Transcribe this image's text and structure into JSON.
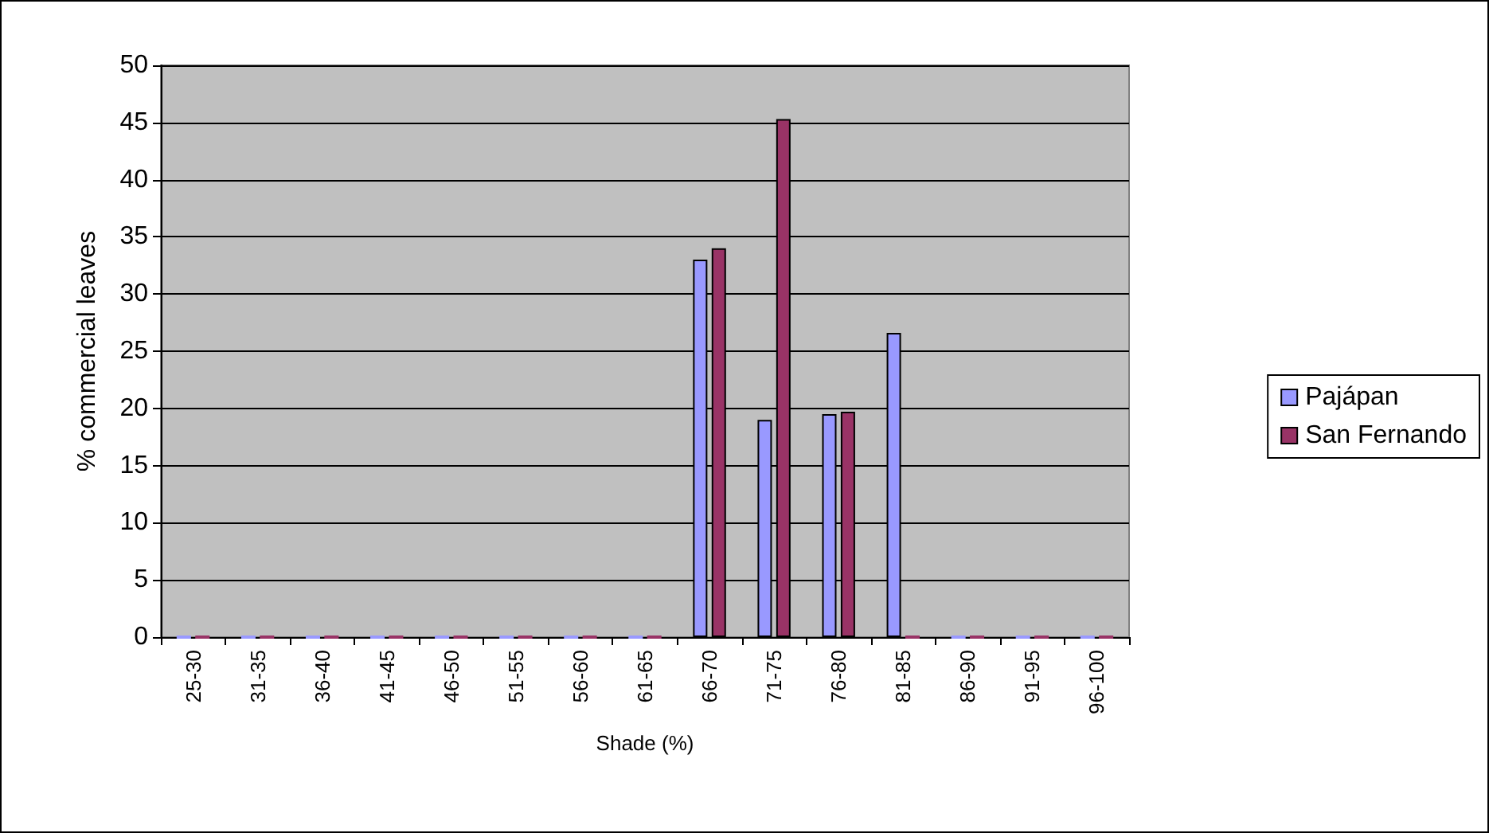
{
  "chart_data": {
    "type": "bar",
    "xlabel": "Shade (%)",
    "ylabel": "% commercial leaves",
    "categories": [
      "25-30",
      "31-35",
      "36-40",
      "41-45",
      "46-50",
      "51-55",
      "56-60",
      "61-65",
      "66-70",
      "71-75",
      "76-80",
      "81-85",
      "86-90",
      "91-95",
      "96-100"
    ],
    "series": [
      {
        "name": "Pajápan",
        "color": "#9999ff",
        "values": [
          0,
          0,
          0,
          0,
          0,
          0,
          0,
          0,
          33,
          19,
          19.5,
          26.6,
          0,
          0,
          0
        ]
      },
      {
        "name": "San Fernando",
        "color": "#993366",
        "values": [
          0,
          0,
          0,
          0,
          0,
          0,
          0,
          0,
          34,
          45.3,
          19.7,
          0,
          0,
          0,
          0
        ]
      }
    ],
    "ylim": [
      0,
      50
    ],
    "yticks": [
      0,
      5,
      10,
      15,
      20,
      25,
      30,
      35,
      40,
      45,
      50
    ],
    "grid": "y",
    "legend": "right"
  }
}
